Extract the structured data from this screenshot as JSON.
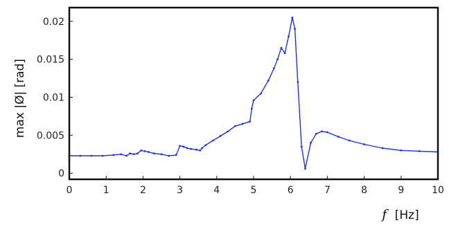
{
  "chart_data": {
    "type": "scatter",
    "xlabel_symbol": "f",
    "xlabel_unit": "[Hz]",
    "ylabel": "max |Ø| [rad]",
    "xlim": [
      0,
      10
    ],
    "ylim": [
      -0.0008,
      0.0218
    ],
    "x_ticks": [
      {
        "value": 0,
        "label": "0"
      },
      {
        "value": 1,
        "label": "1"
      },
      {
        "value": 2,
        "label": "2"
      },
      {
        "value": 3,
        "label": "3"
      },
      {
        "value": 4,
        "label": "4"
      },
      {
        "value": 5,
        "label": "5"
      },
      {
        "value": 6,
        "label": "6"
      },
      {
        "value": 7,
        "label": "7"
      },
      {
        "value": 8,
        "label": "8"
      },
      {
        "value": 9,
        "label": "9"
      },
      {
        "value": 10,
        "label": "10"
      }
    ],
    "y_ticks": [
      {
        "value": 0,
        "label": "0"
      },
      {
        "value": 0.005,
        "label": "0.005"
      },
      {
        "value": 0.01,
        "label": "0.01"
      },
      {
        "value": 0.015,
        "label": "0.015"
      },
      {
        "value": 0.02,
        "label": "0.02"
      }
    ],
    "grid": false,
    "marker_color": "#1f2fe0",
    "series": [
      {
        "x": [
          0.0,
          0.3,
          0.6,
          0.9,
          1.2,
          1.4,
          1.55,
          1.65,
          1.75,
          1.85,
          1.95,
          2.05,
          2.15,
          2.3,
          2.5,
          2.7,
          2.9,
          3.0,
          3.1,
          3.2,
          3.3,
          3.45,
          3.55,
          3.6,
          3.7,
          3.9,
          4.1,
          4.3,
          4.5,
          4.7,
          4.9,
          4.95,
          5.0,
          5.2,
          5.4,
          5.55,
          5.65,
          5.75,
          5.85,
          5.95,
          6.05,
          6.12,
          6.2,
          6.3,
          6.4,
          6.55,
          6.7,
          6.85,
          7.0,
          7.3,
          7.6,
          8.0,
          8.5,
          9.0,
          9.5,
          10.0
        ],
        "y": [
          0.0023,
          0.0023,
          0.0023,
          0.0023,
          0.0024,
          0.0025,
          0.0023,
          0.0026,
          0.0025,
          0.0026,
          0.003,
          0.0029,
          0.0028,
          0.0026,
          0.0025,
          0.0023,
          0.0024,
          0.0036,
          0.0035,
          0.0033,
          0.0032,
          0.0031,
          0.003,
          0.0033,
          0.0037,
          0.0043,
          0.0049,
          0.0055,
          0.0062,
          0.0065,
          0.0068,
          0.0085,
          0.0096,
          0.0105,
          0.0122,
          0.0138,
          0.015,
          0.0165,
          0.0158,
          0.018,
          0.0205,
          0.019,
          0.012,
          0.0035,
          0.0006,
          0.004,
          0.0052,
          0.0055,
          0.0054,
          0.0048,
          0.0043,
          0.0038,
          0.0033,
          0.003,
          0.0029,
          0.0028
        ]
      }
    ]
  }
}
